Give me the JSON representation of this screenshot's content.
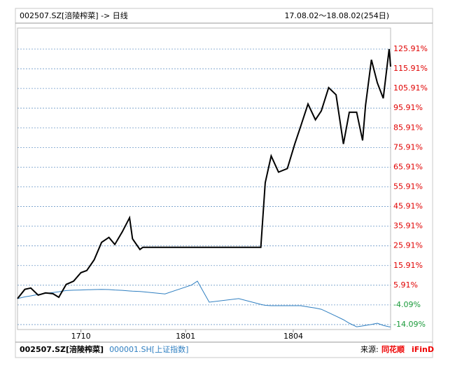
{
  "chart_data": {
    "type": "line",
    "title": "002507.SZ[涪陵榨菜] -> 日线",
    "subtitle": "17.08.02～18.08.02(254日)",
    "x": [
      0,
      5,
      9,
      14,
      19,
      24,
      28,
      33,
      38,
      43,
      47,
      52,
      57,
      62,
      66,
      71,
      76,
      78,
      83,
      85,
      100,
      118,
      122,
      130,
      150,
      165,
      168,
      172,
      177,
      183,
      188,
      192,
      197,
      202,
      206,
      211,
      216,
      221,
      225,
      230,
      234,
      236,
      240,
      244,
      248,
      252,
      253
    ],
    "xlim": [
      0,
      253
    ],
    "xticks": [
      {
        "value": 43,
        "label": "1710"
      },
      {
        "value": 114,
        "label": "1801"
      },
      {
        "value": 187,
        "label": "1804"
      }
    ],
    "series": [
      {
        "name": "002507.SZ[涪陵榨菜]",
        "color": "#000000",
        "values": [
          -0.9,
          3.8,
          4.5,
          0.9,
          2,
          1.6,
          -0.2,
          6.3,
          8,
          12.3,
          13.4,
          18.8,
          27.7,
          30.2,
          26.6,
          33,
          40.2,
          29.5,
          24.1,
          25.2,
          25.2,
          25.2,
          25.2,
          25.2,
          25.2,
          25.2,
          58,
          71.6,
          63.4,
          65.2,
          77.7,
          86.6,
          98,
          90,
          94.5,
          106.3,
          102.7,
          77.7,
          93.8,
          93.8,
          79.5,
          97.3,
          120.5,
          108.8,
          100.9,
          125.9,
          117
        ]
      },
      {
        "name": "000001.SH[上证指数]",
        "color": "#2f7fc1",
        "values": [
          -0.9,
          0,
          0.5,
          1.2,
          1.8,
          2.2,
          2.6,
          3.2,
          3.4,
          3.5,
          3.6,
          3.7,
          3.8,
          3.7,
          3.5,
          3.3,
          3,
          2.9,
          2.7,
          2.6,
          1.5,
          6,
          8,
          -2.7,
          -0.9,
          -3.8,
          -4.3,
          -4.5,
          -4.5,
          -4.5,
          -4.5,
          -4.5,
          -5.1,
          -5.7,
          -6.3,
          -8,
          -9.8,
          -11.6,
          -13.4,
          -15.2,
          -14.8,
          -14.5,
          -14,
          -13.4,
          -14.5,
          -15.2,
          -15.2
        ]
      }
    ],
    "ylim": [
      -16.6,
      136.6
    ],
    "yticks": [
      {
        "value": 125.91,
        "label": "125.91%"
      },
      {
        "value": 115.91,
        "label": "115.91%"
      },
      {
        "value": 105.91,
        "label": "105.91%"
      },
      {
        "value": 95.91,
        "label": "95.91%"
      },
      {
        "value": 85.91,
        "label": "85.91%"
      },
      {
        "value": 75.91,
        "label": "75.91%"
      },
      {
        "value": 65.91,
        "label": "65.91%"
      },
      {
        "value": 55.91,
        "label": "55.91%"
      },
      {
        "value": 45.91,
        "label": "45.91%"
      },
      {
        "value": 35.91,
        "label": "35.91%"
      },
      {
        "value": 25.91,
        "label": "25.91%"
      },
      {
        "value": 15.91,
        "label": "15.91%"
      },
      {
        "value": 5.91,
        "label": "5.91%"
      },
      {
        "value": -4.09,
        "label": "-4.09%"
      },
      {
        "value": -14.09,
        "label": "-14.09%"
      }
    ],
    "grid": true,
    "source_label": "来源:",
    "source_brand": "同花顺",
    "source_product": "iFinD"
  }
}
